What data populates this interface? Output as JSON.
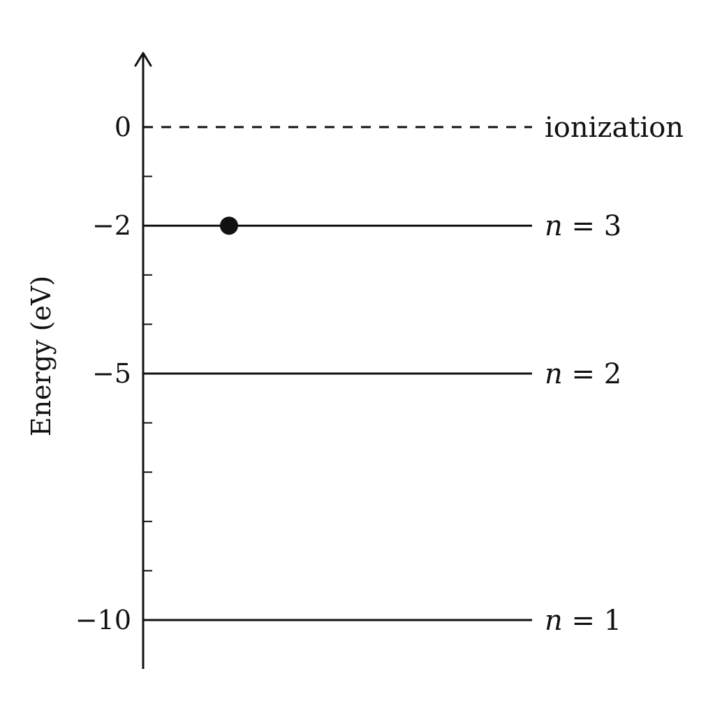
{
  "axis": {
    "title": "Energy (eV)",
    "range": [
      -11,
      1.5
    ],
    "minor_tick_step": 1
  },
  "ticks": [
    {
      "value": 0,
      "label": "0"
    },
    {
      "value": -2,
      "label": "−2"
    },
    {
      "value": -5,
      "label": "−5"
    },
    {
      "value": -10,
      "label": "−10"
    }
  ],
  "levels": [
    {
      "energy": 0,
      "style": "dashed",
      "label": "ionization"
    },
    {
      "energy": -2,
      "style": "solid",
      "label_var": "n",
      "label_rest": " = 3"
    },
    {
      "energy": -5,
      "style": "solid",
      "label_var": "n",
      "label_rest": " = 2"
    },
    {
      "energy": -10,
      "style": "solid",
      "label_var": "n",
      "label_rest": " = 1"
    }
  ],
  "electron": {
    "energy": -2,
    "level": "n = 3"
  },
  "colors": {
    "ink": "#111111",
    "background": "#ffffff"
  }
}
